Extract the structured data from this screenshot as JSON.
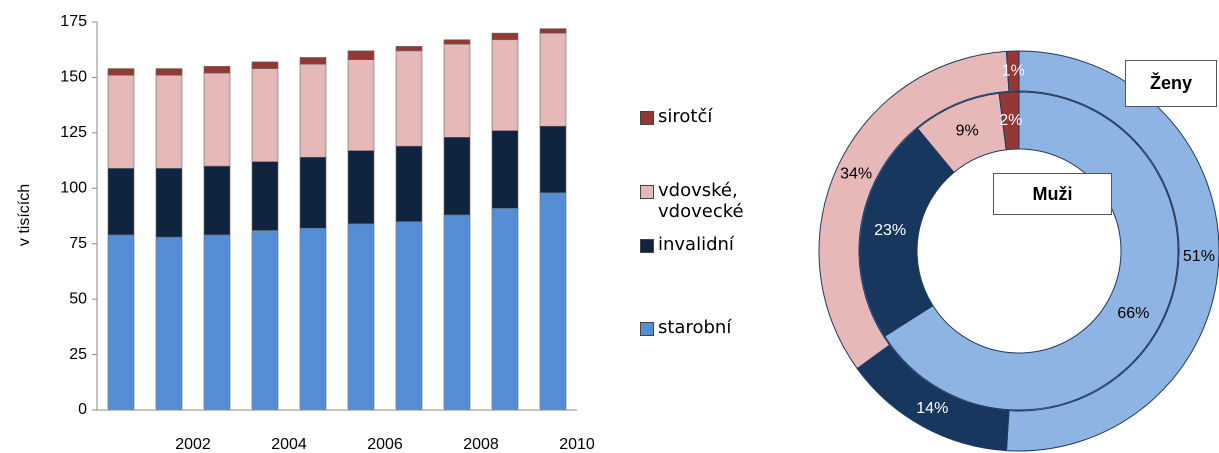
{
  "chart_data": [
    {
      "type": "bar",
      "stacked": true,
      "y_label": "v tisících",
      "categories": [
        null,
        "2002",
        null,
        "2004",
        null,
        "2006",
        null,
        "2008",
        null,
        "2010"
      ],
      "series": [
        {
          "name": "starobní",
          "color": "#558ed5",
          "values": [
            79,
            78,
            79,
            81,
            82,
            84,
            85,
            88,
            91,
            98
          ]
        },
        {
          "name": "invalidní",
          "color": "#10243f",
          "values": [
            30,
            31,
            31,
            31,
            32,
            33,
            34,
            35,
            35,
            30
          ]
        },
        {
          "name": "vdovské, vdovecké",
          "color": "#e6b9b8",
          "values": [
            42,
            42,
            42,
            42,
            42,
            41,
            43,
            42,
            41,
            42
          ]
        },
        {
          "name": "sirotčí",
          "color": "#953735",
          "values": [
            3,
            3,
            3,
            3,
            3,
            4,
            2,
            2,
            3,
            2
          ]
        }
      ],
      "ylim": [
        0,
        175
      ],
      "yticks": [
        0,
        25,
        50,
        75,
        100,
        125,
        150,
        175
      ]
    },
    {
      "type": "donut",
      "colors": [
        "#8eb4e3",
        "#17375e",
        "#e6b9b8",
        "#953735"
      ],
      "rings": [
        {
          "name": "Ženy",
          "values": [
            51,
            14,
            34,
            1
          ],
          "value_labels": [
            "51%",
            "14%",
            "34%",
            "1%"
          ]
        },
        {
          "name": "Muži",
          "values": [
            66,
            23,
            9,
            2
          ],
          "value_labels": [
            "66%",
            "23%",
            "9%",
            "2%"
          ]
        }
      ]
    }
  ]
}
